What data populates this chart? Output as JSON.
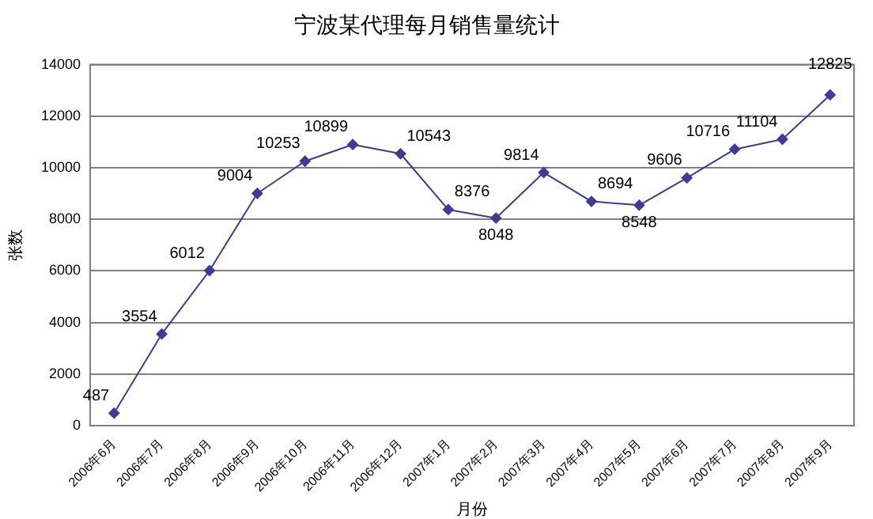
{
  "chart_data": {
    "type": "line",
    "title": "宁波某代理每月销售量统计",
    "xlabel": "月份",
    "ylabel": "张数",
    "categories": [
      "2006年6月",
      "2006年7月",
      "2006年8月",
      "2006年9月",
      "2006年10月",
      "2006年11月",
      "2006年12月",
      "2007年1月",
      "2007年2月",
      "2007年3月",
      "2007年4月",
      "2007年5月",
      "2007年6月",
      "2007年7月",
      "2007年8月",
      "2007年9月"
    ],
    "series": [
      {
        "color": "#3b3b9a",
        "values": [
          487,
          3554,
          6012,
          9004,
          10253,
          10899,
          10543,
          8376,
          8048,
          9814,
          8694,
          8548,
          9606,
          10716,
          11104,
          12825
        ]
      }
    ],
    "ylim": [
      0,
      14000
    ],
    "yticks": [
      0,
      2000,
      4000,
      6000,
      8000,
      10000,
      12000,
      14000
    ],
    "grid": "y",
    "legend": false,
    "marker": "diamond",
    "line_style": "solid",
    "data_labels": true
  }
}
